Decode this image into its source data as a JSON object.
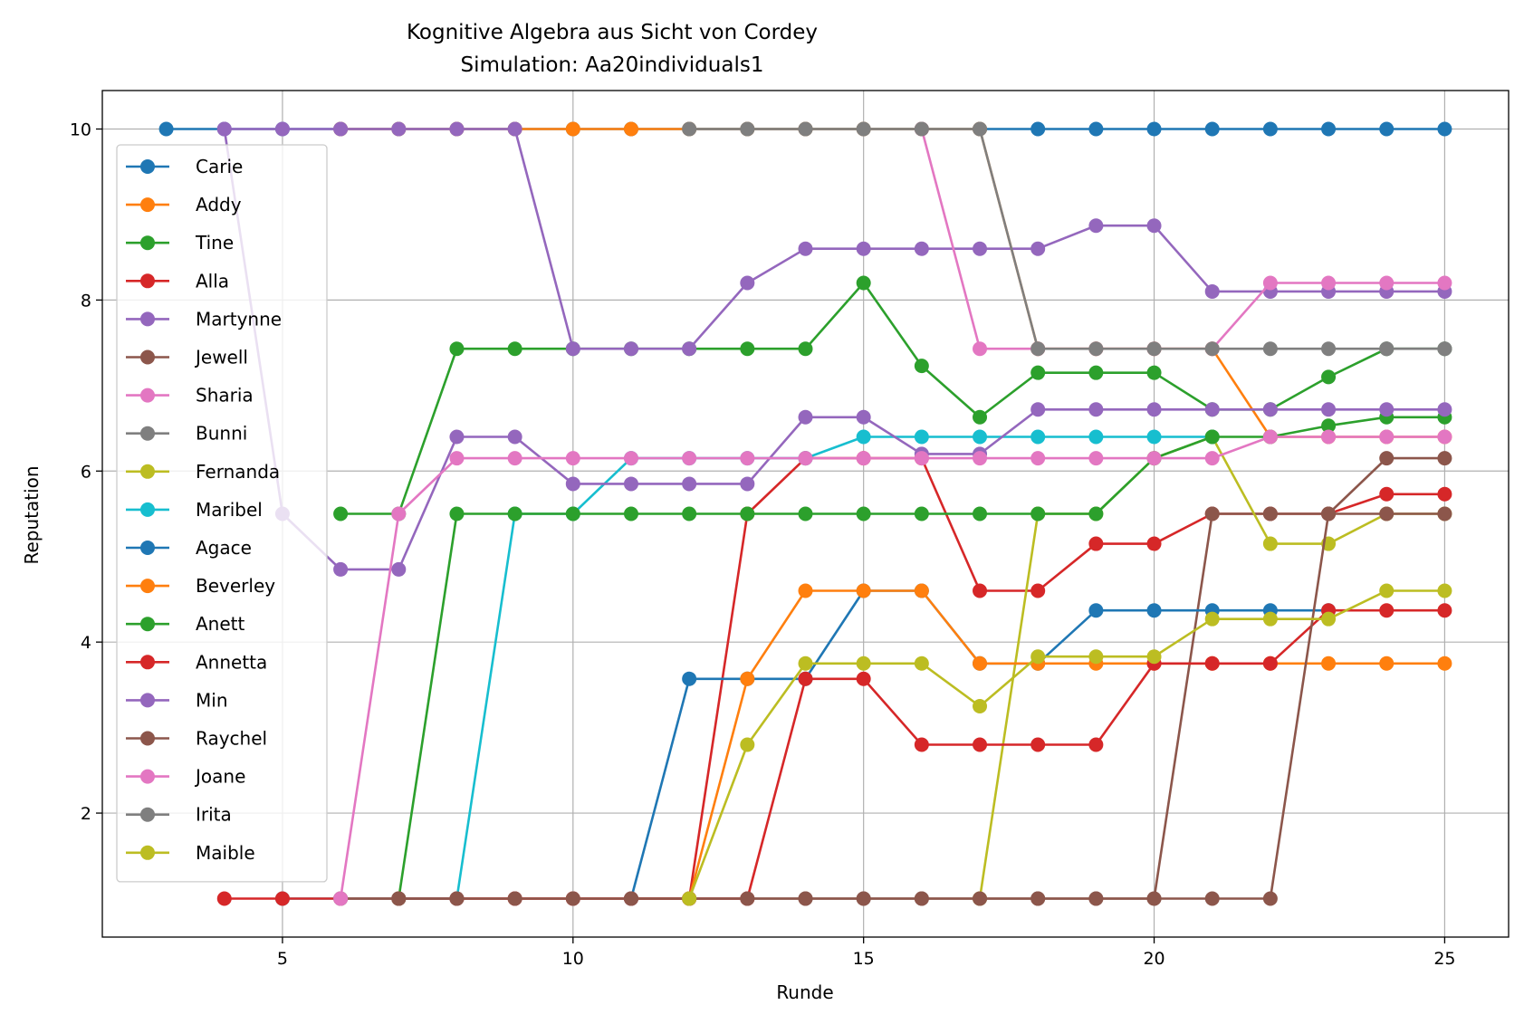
{
  "chart_data": {
    "type": "line",
    "title": "Kognitive Algebra aus Sicht von Cordey",
    "subtitle": "Simulation: Aa20individuals1",
    "xlabel": "Runde",
    "ylabel": "Reputation",
    "xlim": [
      1.9,
      26.1
    ],
    "ylim": [
      0.55,
      10.45
    ],
    "xticks": [
      5,
      10,
      15,
      20,
      25
    ],
    "yticks": [
      2,
      4,
      6,
      8,
      10
    ],
    "grid": true,
    "legend_position": "upper-left",
    "series": [
      {
        "name": "Carie",
        "color": "#1f77b4",
        "x": [
          3,
          4,
          5,
          6,
          7,
          8,
          9,
          10,
          11,
          12,
          13,
          14,
          15,
          16,
          17,
          18,
          19,
          20,
          21,
          22,
          23,
          24,
          25
        ],
        "y": [
          10,
          10,
          10,
          10,
          10,
          10,
          10,
          10,
          10,
          10,
          10,
          10,
          10,
          10,
          10,
          10,
          10,
          10,
          10,
          10,
          10,
          10,
          10
        ]
      },
      {
        "name": "Addy",
        "color": "#ff7f0e",
        "x": [
          6,
          7,
          8,
          9,
          10,
          11,
          12,
          13,
          14,
          15,
          16,
          17,
          18,
          19,
          20,
          21,
          22,
          23,
          24,
          25
        ],
        "y": [
          10,
          10,
          10,
          10,
          10,
          10,
          10,
          10,
          10,
          10,
          10,
          10,
          7.43,
          7.43,
          7.43,
          7.43,
          6.4,
          6.4,
          6.4,
          6.4
        ]
      },
      {
        "name": "Tine",
        "color": "#2ca02c",
        "x": [
          6,
          7,
          8,
          9,
          10,
          11,
          12,
          13,
          14,
          15,
          16,
          17,
          18,
          19,
          20,
          21,
          22,
          23,
          24,
          25
        ],
        "y": [
          5.5,
          5.5,
          7.43,
          7.43,
          7.43,
          7.43,
          7.43,
          7.43,
          7.43,
          8.2,
          7.23,
          6.63,
          7.15,
          7.15,
          7.15,
          6.72,
          6.72,
          7.1,
          7.43,
          7.43
        ]
      },
      {
        "name": "Alla",
        "color": "#d62728",
        "x": [
          7,
          8,
          9,
          10,
          11,
          12,
          13,
          14,
          15,
          16,
          17,
          18,
          19,
          20,
          21,
          22,
          23,
          24,
          25
        ],
        "y": [
          1,
          1,
          1,
          1,
          1,
          1,
          5.5,
          6.15,
          6.15,
          6.15,
          4.6,
          4.6,
          5.15,
          5.15,
          5.5,
          5.5,
          5.5,
          5.73,
          5.73
        ]
      },
      {
        "name": "Martynne",
        "color": "#9467bd",
        "x": [
          4,
          5,
          6,
          7,
          8,
          9,
          10,
          11,
          12,
          13,
          14,
          15,
          16,
          17,
          18,
          19,
          20,
          21,
          22,
          23,
          24,
          25
        ],
        "y": [
          10,
          10,
          10,
          10,
          10,
          10,
          7.43,
          7.43,
          7.43,
          8.2,
          8.6,
          8.6,
          8.6,
          8.6,
          8.6,
          8.87,
          8.87,
          8.1,
          8.1,
          8.1,
          8.1,
          8.1
        ]
      },
      {
        "name": "Jewell",
        "color": "#8c564b",
        "x": [
          11,
          12,
          13,
          14,
          15,
          16,
          17,
          18,
          19,
          20,
          21,
          22,
          23,
          24,
          25
        ],
        "y": [
          1,
          1,
          1,
          1,
          1,
          1,
          1,
          1,
          1,
          1,
          5.5,
          5.5,
          5.5,
          6.15,
          6.15
        ]
      },
      {
        "name": "Sharia",
        "color": "#e377c2",
        "x": [
          16,
          17,
          18,
          19,
          20,
          21,
          22,
          23,
          24,
          25
        ],
        "y": [
          10,
          7.43,
          7.43,
          7.43,
          7.43,
          7.43,
          8.2,
          8.2,
          8.2,
          8.2
        ]
      },
      {
        "name": "Bunni",
        "color": "#7f7f7f",
        "x": [
          12,
          13,
          14,
          15,
          16,
          17,
          18,
          19,
          20,
          21,
          22,
          23,
          24,
          25
        ],
        "y": [
          10,
          10,
          10,
          10,
          10,
          10,
          7.43,
          7.43,
          7.43,
          7.43,
          7.43,
          7.43,
          7.43,
          7.43
        ]
      },
      {
        "name": "Fernanda",
        "color": "#bcbd22",
        "x": [
          17,
          18,
          19,
          20,
          21,
          22,
          23,
          24,
          25
        ],
        "y": [
          1,
          5.5,
          5.5,
          6.15,
          6.4,
          5.15,
          5.15,
          5.5,
          5.5
        ]
      },
      {
        "name": "Maribel",
        "color": "#17becf",
        "x": [
          5,
          6,
          7,
          8,
          9,
          10,
          11,
          12,
          13,
          14,
          15,
          16,
          17,
          18,
          19,
          20,
          21
        ],
        "y": [
          1,
          1,
          1,
          1,
          5.5,
          5.5,
          6.15,
          6.15,
          6.15,
          6.15,
          6.4,
          6.4,
          6.4,
          6.4,
          6.4,
          6.4,
          6.4
        ]
      },
      {
        "name": "Agace",
        "color": "#1f77b4",
        "x": [
          11,
          12,
          13,
          14,
          15,
          16,
          17,
          18,
          19,
          20,
          21,
          22,
          23
        ],
        "y": [
          1,
          3.57,
          3.57,
          3.57,
          4.6,
          4.6,
          3.75,
          3.75,
          4.37,
          4.37,
          4.37,
          4.37,
          4.37
        ]
      },
      {
        "name": "Beverley",
        "color": "#ff7f0e",
        "x": [
          12,
          13,
          14,
          15,
          16,
          17,
          18,
          19,
          20,
          21,
          22,
          23,
          24,
          25
        ],
        "y": [
          1,
          3.57,
          4.6,
          4.6,
          4.6,
          3.75,
          3.75,
          3.75,
          3.75,
          3.75,
          3.75,
          3.75,
          3.75,
          3.75
        ]
      },
      {
        "name": "Anett",
        "color": "#2ca02c",
        "x": [
          7,
          8,
          9,
          10,
          11,
          12,
          13,
          14,
          15,
          16,
          17,
          18,
          19,
          20,
          21,
          22,
          23,
          24,
          25
        ],
        "y": [
          1,
          5.5,
          5.5,
          5.5,
          5.5,
          5.5,
          5.5,
          5.5,
          5.5,
          5.5,
          5.5,
          5.5,
          5.5,
          6.15,
          6.4,
          6.4,
          6.53,
          6.63,
          6.63
        ]
      },
      {
        "name": "Annetta",
        "color": "#d62728",
        "x": [
          4,
          5,
          6,
          7,
          8,
          9,
          10,
          11,
          12,
          13,
          14,
          15,
          16,
          17,
          18,
          19,
          20,
          21,
          22,
          23,
          24,
          25
        ],
        "y": [
          1,
          1,
          1,
          1,
          1,
          1,
          1,
          1,
          1,
          1,
          3.57,
          3.57,
          2.8,
          2.8,
          2.8,
          2.8,
          3.75,
          3.75,
          3.75,
          4.37,
          4.37,
          4.37
        ]
      },
      {
        "name": "Min",
        "color": "#9467bd",
        "x": [
          4,
          5,
          6,
          7,
          8,
          9,
          10,
          11,
          12,
          13,
          14,
          15,
          16,
          17,
          18,
          19,
          20,
          21,
          22,
          23,
          24,
          25
        ],
        "y": [
          10,
          5.5,
          4.85,
          4.85,
          6.4,
          6.4,
          5.85,
          5.85,
          5.85,
          5.85,
          6.63,
          6.63,
          6.2,
          6.2,
          6.72,
          6.72,
          6.72,
          6.72,
          6.72,
          6.72,
          6.72,
          6.72
        ]
      },
      {
        "name": "Raychel",
        "color": "#8c564b",
        "x": [
          6,
          7,
          8,
          9,
          10,
          11,
          12,
          13,
          14,
          15,
          16,
          17,
          18,
          19,
          20,
          21,
          22,
          23,
          24,
          25
        ],
        "y": [
          1,
          1,
          1,
          1,
          1,
          1,
          1,
          1,
          1,
          1,
          1,
          1,
          1,
          1,
          1,
          1,
          1,
          5.5,
          5.5,
          5.5
        ]
      },
      {
        "name": "Joane",
        "color": "#e377c2",
        "x": [
          6,
          7,
          8,
          9,
          10,
          11,
          12,
          13,
          14,
          15,
          16,
          17,
          18,
          19,
          20,
          21,
          22,
          23,
          24,
          25
        ],
        "y": [
          1,
          5.5,
          6.15,
          6.15,
          6.15,
          6.15,
          6.15,
          6.15,
          6.15,
          6.15,
          6.15,
          6.15,
          6.15,
          6.15,
          6.15,
          6.15,
          6.4,
          6.4,
          6.4,
          6.4
        ]
      },
      {
        "name": "Irita",
        "color": "#7f7f7f",
        "x": [
          24,
          25
        ],
        "y": [
          7.43,
          7.43
        ]
      },
      {
        "name": "Maible",
        "color": "#bcbd22",
        "x": [
          12,
          13,
          14,
          15,
          16,
          17,
          18,
          19,
          20,
          21,
          22,
          23,
          24,
          25
        ],
        "y": [
          1,
          2.8,
          3.75,
          3.75,
          3.75,
          3.25,
          3.83,
          3.83,
          3.83,
          4.27,
          4.27,
          4.27,
          4.6,
          4.6
        ]
      }
    ]
  }
}
